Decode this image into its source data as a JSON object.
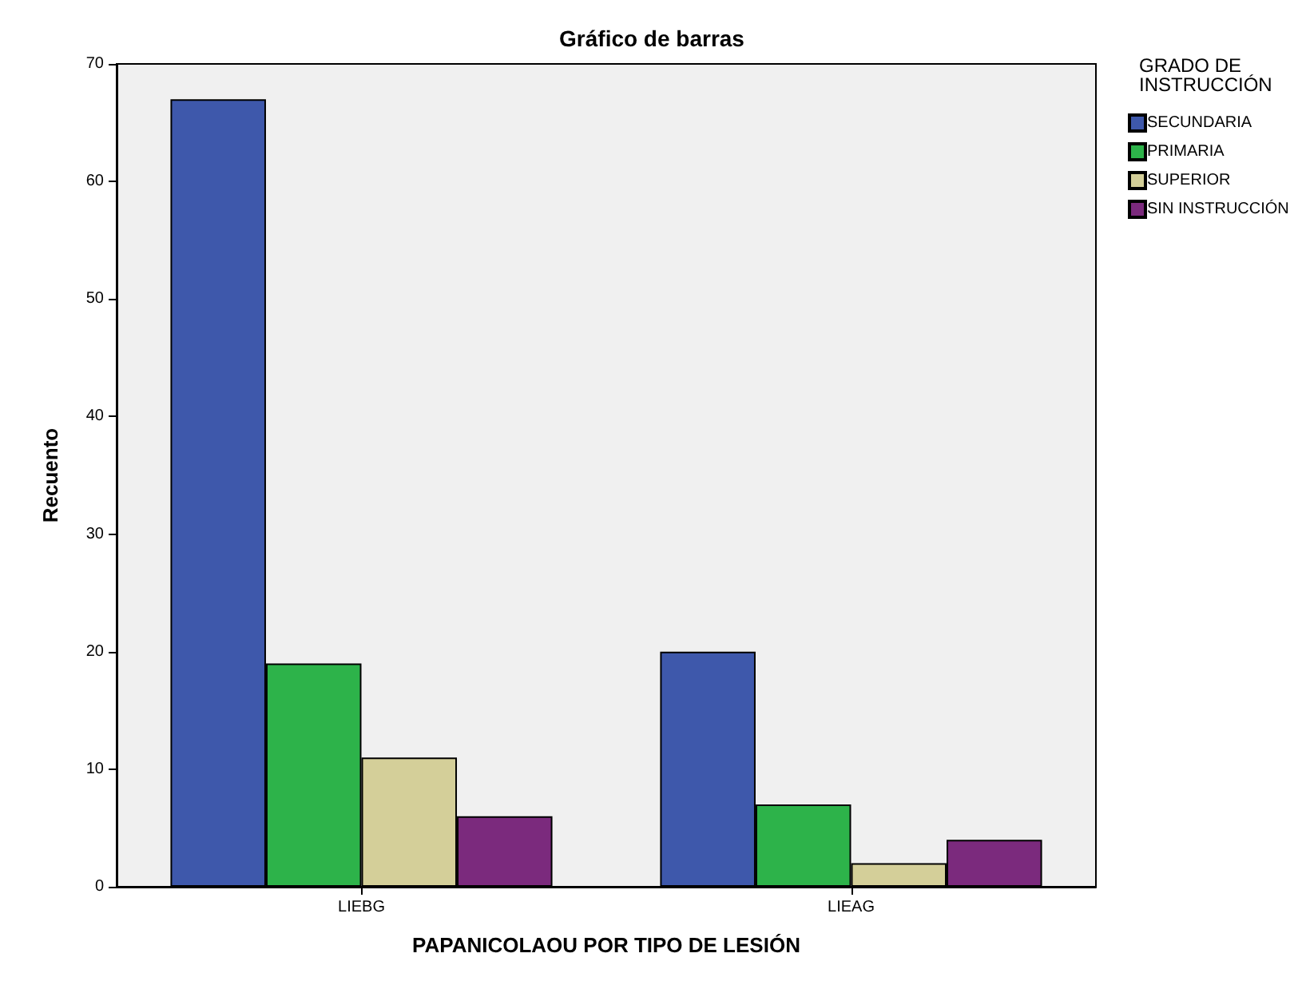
{
  "chart_data": {
    "type": "bar",
    "title": "Gráfico de barras",
    "xlabel": "PAPANICOLAOU POR TIPO DE LESIÓN",
    "ylabel": "Recuento",
    "legend_title": "GRADO DE INSTRUCCIÓN",
    "categories": [
      "LIEBG",
      "LIEAG"
    ],
    "series": [
      {
        "name": "SECUNDARIA",
        "color": "#3e58ab",
        "values": [
          67,
          20
        ]
      },
      {
        "name": "PRIMARIA",
        "color": "#2db34a",
        "values": [
          19,
          7
        ]
      },
      {
        "name": "SUPERIOR",
        "color": "#d4cf99",
        "values": [
          11,
          2
        ]
      },
      {
        "name": "SIN INSTRUCCIÓN",
        "color": "#7b2a7d",
        "values": [
          6,
          4
        ]
      }
    ],
    "ylim": [
      0,
      70
    ],
    "yticks": [
      0,
      10,
      20,
      30,
      40,
      50,
      60,
      70
    ],
    "grid": false,
    "legend": "right"
  }
}
